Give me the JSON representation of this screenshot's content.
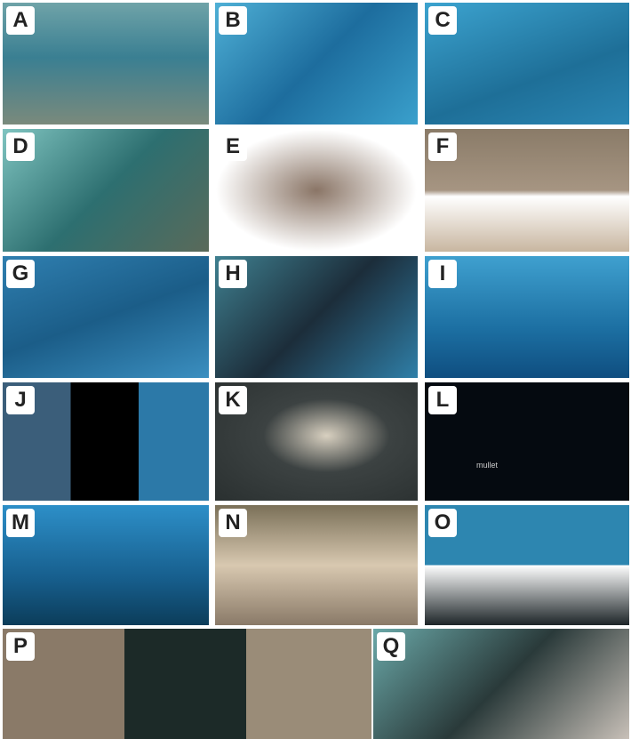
{
  "panels": [
    {
      "label": "A"
    },
    {
      "label": "B"
    },
    {
      "label": "C"
    },
    {
      "label": "D"
    },
    {
      "label": "E"
    },
    {
      "label": "F"
    },
    {
      "label": "G"
    },
    {
      "label": "H"
    },
    {
      "label": "I"
    },
    {
      "label": "J"
    },
    {
      "label": "K"
    },
    {
      "label": "L",
      "caption": "mullet"
    },
    {
      "label": "M"
    },
    {
      "label": "N"
    },
    {
      "label": "O"
    },
    {
      "label": "P"
    },
    {
      "label": "Q"
    }
  ]
}
